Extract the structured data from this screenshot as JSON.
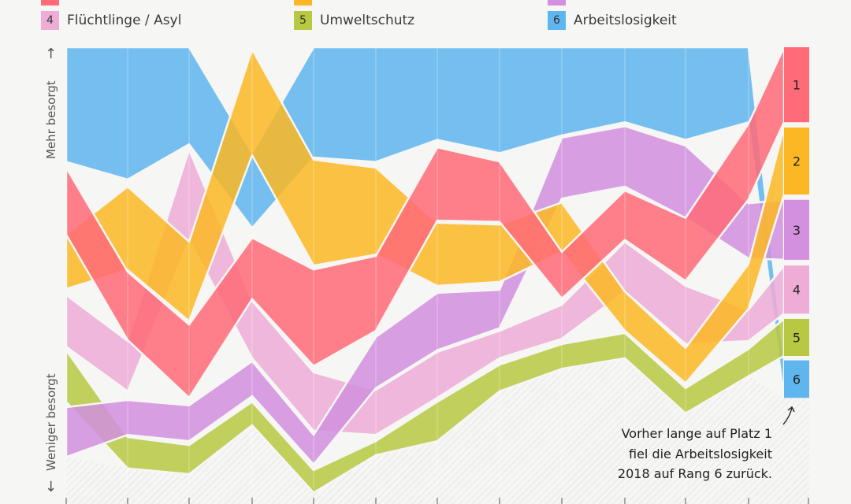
{
  "legend": [
    {
      "rank": "1",
      "label": "",
      "color": "#ff6b78"
    },
    {
      "rank": "2",
      "label": "",
      "color": "#fbb824"
    },
    {
      "rank": "3",
      "label": "",
      "color": "#d290de"
    },
    {
      "rank": "4",
      "label": "Flüchtlinge / Asyl",
      "color": "#eeacd6"
    },
    {
      "rank": "5",
      "label": "Umweltschutz",
      "color": "#b8c842"
    },
    {
      "rank": "6",
      "label": "Arbeitslosigkeit",
      "color": "#5fb6ef"
    }
  ],
  "y_axis": {
    "top_label": "Mehr besorgt",
    "bottom_label": "Weniger besorgt",
    "up_arrow": "↑",
    "down_arrow": "↓"
  },
  "annotation": {
    "lines": [
      "Vorher lange auf Platz 1",
      "fiel die Arbeitslosigkeit",
      "2018 auf Rang 6 zurück."
    ]
  },
  "chart_data": {
    "type": "area",
    "subtype": "ranked band (bump) chart",
    "y_direction": "up = more concerned, down = less concerned",
    "x_ticks": 13,
    "grid": "vertical lines at each period",
    "series": [
      {
        "rank": "6",
        "name": "Arbeitslosigkeit",
        "color": "#5fb6ef",
        "upper": [
          100,
          100,
          100,
          76,
          100,
          100,
          100,
          100,
          100,
          100,
          100,
          100,
          29
        ],
        "lower": [
          74,
          70,
          78,
          59,
          75,
          74,
          79,
          76,
          80,
          83,
          79,
          83,
          20.5
        ]
      },
      {
        "rank": "5",
        "name": "Umweltschutz",
        "color": "#b8c842",
        "upper": [
          31.3,
          11.6,
          9.8,
          19.6,
          4.1,
          10.7,
          19.6,
          28,
          32.7,
          35.2,
          22.7,
          31.6,
          38.4
        ],
        "lower": [
          19.6,
          4.5,
          3.2,
          14.3,
          -1,
          7.5,
          10.7,
          22,
          27.1,
          29.5,
          17,
          25.4,
          30
        ]
      },
      {
        "rank": "4",
        "name": "Flüchtlinge / Asyl",
        "color": "#eeacd6",
        "upper": [
          43.8,
          33.4,
          76.8,
          42.5,
          26.3,
          22.3,
          30.9,
          35.7,
          41.6,
          55.9,
          45.9,
          40.5,
          50.5
        ],
        "lower": [
          32.1,
          22,
          56.3,
          29.5,
          13,
          12.1,
          20.5,
          29.5,
          33.9,
          44.6,
          32.7,
          33.4,
          39.6
        ]
      },
      {
        "rank": "3",
        "name": "",
        "color": "#d290de",
        "upper": [
          18.4,
          20,
          18.8,
          28.8,
          12.1,
          34.3,
          44.3,
          45,
          79.5,
          82.1,
          77.7,
          64.6,
          65.4
        ],
        "lower": [
          7.1,
          12.1,
          10.7,
          20.9,
          5.4,
          22.7,
          31.3,
          36.3,
          65.7,
          68.4,
          61.3,
          52.1,
          51.8
        ]
      },
      {
        "rank": "2",
        "name": "",
        "color": "#fbb824",
        "upper": [
          57.5,
          68.4,
          55.9,
          99.5,
          74.5,
          72.7,
          60.2,
          59.8,
          64.8,
          44.6,
          31.8,
          50.9,
          81.8
        ],
        "lower": [
          45.2,
          49.5,
          37.9,
          75.5,
          50.5,
          53,
          45.9,
          46.8,
          53.6,
          35.7,
          23.8,
          40.7,
          66.6
        ]
      },
      {
        "rank": "1",
        "name": "",
        "color": "#ff6b78",
        "upper": [
          72.7,
          49.1,
          37.1,
          56.8,
          49.6,
          52.7,
          77.3,
          74.1,
          53.6,
          67.5,
          61.3,
          82.7,
          100
        ],
        "lower": [
          57.5,
          33.6,
          20.5,
          42.9,
          27.7,
          35.7,
          60.7,
          60.4,
          43,
          56.3,
          47,
          65.5,
          83
        ]
      }
    ]
  }
}
